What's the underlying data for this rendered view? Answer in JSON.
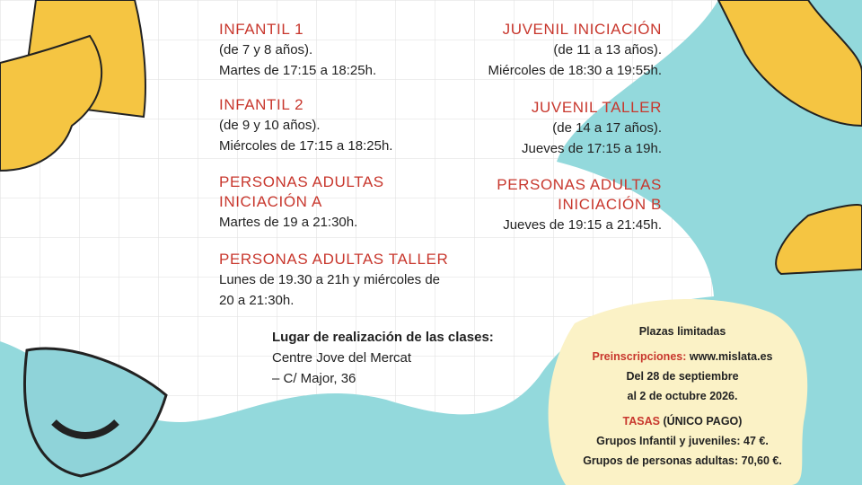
{
  "left_groups": [
    {
      "title": [
        "INFANTIL 1"
      ],
      "lines": [
        "(de 7 y 8 años).",
        "Martes de 17:15 a 18:25h."
      ]
    },
    {
      "title": [
        "INFANTIL 2"
      ],
      "lines": [
        "(de 9 y 10 años).",
        "Miércoles de 17:15 a 18:25h."
      ]
    },
    {
      "title": [
        "PERSONAS ADULTAS",
        "INICIACIÓN A"
      ],
      "lines": [
        "Martes de 19 a 21:30h."
      ]
    },
    {
      "title": [
        "PERSONAS ADULTAS TALLER"
      ],
      "lines": [
        "Lunes de 19.30 a 21h y miércoles de",
        "20 a 21:30h."
      ]
    }
  ],
  "right_groups": [
    {
      "title": [
        "JUVENIL INICIACIÓN"
      ],
      "lines": [
        "(de 11 a 13 años).",
        "Miércoles de 18:30 a 19:55h."
      ]
    },
    {
      "title": [
        "JUVENIL TALLER"
      ],
      "lines": [
        "(de 14 a 17 años).",
        "Jueves de 17:15 a 19h."
      ]
    },
    {
      "title": [
        "PERSONAS ADULTAS",
        "INICIACIÓN B"
      ],
      "lines": [
        "Jueves de 19:15 a 21:45h."
      ]
    }
  ],
  "location": {
    "label": "Lugar de realización  de las clases:",
    "lines": [
      "Centre Jove del Mercat",
      "– C/ Major, 36"
    ]
  },
  "info": {
    "limited": "Plazas limitadas",
    "preinscription_label": "Preinscripciones:",
    "website": "www.mislata.es",
    "dates": [
      "Del 28 de septiembre",
      "al 2 de octubre 2026."
    ],
    "fees_label": "TASAS",
    "fees_note": "(ÚNICO PAGO)",
    "fees": [
      "Grupos Infantil y juveniles: 47 €.",
      "Grupos de personas adultas: 70,60 €."
    ]
  }
}
